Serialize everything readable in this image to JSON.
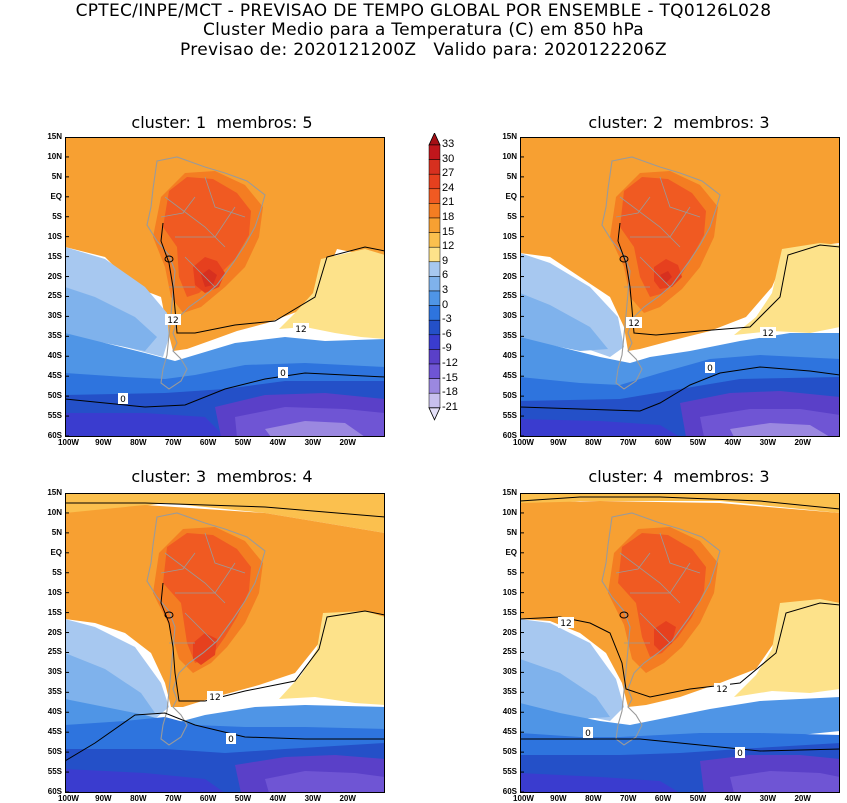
{
  "header": {
    "line1": "CPTEC/INPE/MCT - PREVISAO DE TEMPO GLOBAL POR ENSEMBLE - TQ0126L028",
    "line2": "Cluster Medio para a Temperatura (C) em 850 hPa",
    "line3": "Previsao de: 2020121200Z   Valido para: 2020122206Z"
  },
  "panels": [
    {
      "title": "cluster: 1  membros: 5",
      "contour_labels": [
        "12",
        "12",
        "0",
        "0"
      ]
    },
    {
      "title": "cluster: 2  membros: 3",
      "contour_labels": [
        "12",
        "12",
        "0"
      ]
    },
    {
      "title": "cluster: 3  membros: 4",
      "contour_labels": [
        "12",
        "0"
      ]
    },
    {
      "title": "cluster: 4  membros: 3",
      "contour_labels": [
        "12",
        "12",
        "0",
        "0"
      ]
    }
  ],
  "lat_ticks": [
    "15N",
    "10N",
    "5N",
    "EQ",
    "5S",
    "10S",
    "15S",
    "20S",
    "25S",
    "30S",
    "35S",
    "40S",
    "45S",
    "50S",
    "55S",
    "60S"
  ],
  "lon_ticks": [
    "100W",
    "90W",
    "80W",
    "70W",
    "60W",
    "50W",
    "40W",
    "30W",
    "20W"
  ],
  "colorbar": {
    "labels": [
      "33",
      "30",
      "27",
      "24",
      "21",
      "18",
      "15",
      "12",
      "9",
      "6",
      "3",
      "0",
      "-3",
      "-6",
      "-9",
      "-12",
      "-15",
      "-18",
      "-21"
    ],
    "colors": [
      "#a50f15",
      "#c0161c",
      "#d7301f",
      "#e6401e",
      "#f05a22",
      "#f47d22",
      "#f7a032",
      "#fbc04e",
      "#fde28a",
      "#a7c8f0",
      "#7fb2ec",
      "#4f95e6",
      "#2e74de",
      "#2450c8",
      "#3a3ccf",
      "#5a40c8",
      "#6f55d4",
      "#9b88e0",
      "#c8c0ee",
      "#e4e0f8"
    ]
  }
}
